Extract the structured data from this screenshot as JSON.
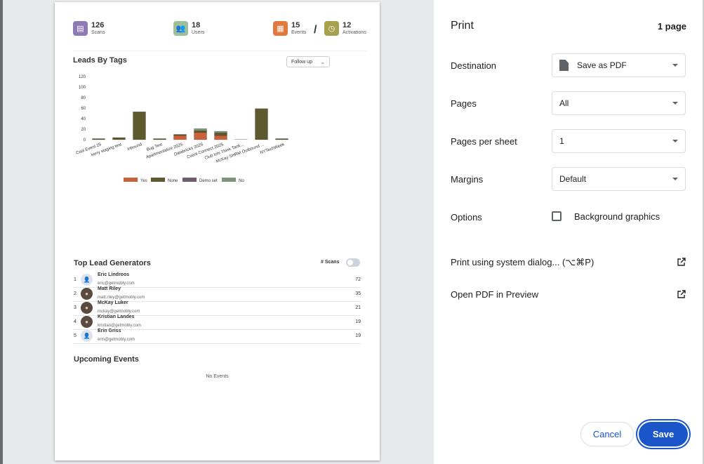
{
  "stats": {
    "scans": {
      "value": "126",
      "label": "Scans",
      "color": "#8e7ab5"
    },
    "users": {
      "value": "18",
      "label": "Users",
      "color": "#9cc19a"
    },
    "events": {
      "value": "15",
      "label": "Events",
      "color": "#e07a3f"
    },
    "activations": {
      "value": "12",
      "label": "Activations",
      "color": "#a9a04e"
    },
    "separator": "/"
  },
  "leads_by_tags": {
    "title": "Leads By Tags",
    "filter": "Follow up"
  },
  "chart_data": {
    "type": "bar",
    "stacked": true,
    "categories": [
      "Cool Event 25",
      "kerry staging test",
      "Inbound",
      "Bug Test",
      "Apartmentalize 2025",
      "Databricks 2025",
      "Cvent Connect 2025",
      "Club Ichi Think Tank...",
      "McKay SHRM Outbound ...",
      "NYTechWeek"
    ],
    "series": [
      {
        "name": "Yes",
        "color": "#c9623a",
        "values": [
          0,
          0,
          0,
          0,
          8,
          14,
          8,
          0,
          0,
          0
        ]
      },
      {
        "name": "None",
        "color": "#5e5a2d",
        "values": [
          2,
          4,
          53,
          2,
          2,
          3,
          5,
          0,
          59,
          2
        ]
      },
      {
        "name": "Demo set",
        "color": "#6f5a70",
        "values": [
          0,
          0,
          0,
          0,
          0,
          0,
          0,
          0,
          0,
          0
        ]
      },
      {
        "name": "No",
        "color": "#7d957a",
        "values": [
          0,
          0,
          0,
          0,
          0,
          4,
          3,
          0,
          0,
          0
        ]
      }
    ],
    "yticks": [
      "0",
      "20",
      "40",
      "60",
      "80",
      "100",
      "120"
    ],
    "ylim": [
      0,
      120
    ],
    "legend_position": "bottom"
  },
  "top_leads": {
    "title": "Top Lead Generators",
    "toggle_label": "# Scans",
    "rows": [
      {
        "rank": "1",
        "name": "Eric Lindroos",
        "email": "eric@getmobly.com",
        "count": "72"
      },
      {
        "rank": "2",
        "name": "Matt Riley",
        "email": "matt.riley@getmobly.com",
        "count": "35"
      },
      {
        "rank": "3",
        "name": "McKay Luker",
        "email": "mckay@getmobly.com",
        "count": "21"
      },
      {
        "rank": "4",
        "name": "Kristian Landes",
        "email": "kristian@getmobly.com",
        "count": "19"
      },
      {
        "rank": "5",
        "name": "Erin Griss",
        "email": "erin@getmobly.com",
        "count": "19"
      }
    ]
  },
  "upcoming": {
    "title": "Upcoming Events",
    "empty": "No Events"
  },
  "print": {
    "title": "Print",
    "page_count": "1 page",
    "destination_label": "Destination",
    "destination_value": "Save as PDF",
    "pages_label": "Pages",
    "pages_value": "All",
    "pps_label": "Pages per sheet",
    "pps_value": "1",
    "margins_label": "Margins",
    "margins_value": "Default",
    "options_label": "Options",
    "bg_graphics_label": "Background graphics",
    "system_dialog": "Print using system dialog... (⌥⌘P)",
    "open_preview": "Open PDF in Preview",
    "cancel": "Cancel",
    "save": "Save"
  }
}
